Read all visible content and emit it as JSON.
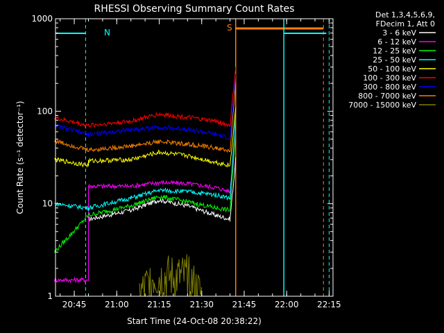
{
  "chart_data": {
    "type": "line",
    "title": "RHESSI Observing Summary Count Rates",
    "xlabel": "Start Time (24-Oct-08 20:38:22)",
    "ylabel": "Count Rate (s⁻¹ detector⁻¹)",
    "y_scale": "log",
    "ylim": [
      1,
      1000
    ],
    "xlim_minutes_after_start": [
      0,
      98
    ],
    "x_ticks": [
      "20:45",
      "21:00",
      "21:15",
      "21:30",
      "21:45",
      "22:00",
      "22:15"
    ],
    "y_ticks": [
      "1",
      "10",
      "100",
      "1000"
    ],
    "legend_header": [
      "Det 1,3,4,5,6,9,",
      "FDecim 1, Att 0"
    ],
    "legend_position": "outside-right",
    "series": [
      {
        "name": "3 - 6 keV",
        "color": "#ffffff",
        "x": [
          "20:38",
          "20:50",
          "21:05",
          "21:15",
          "21:25",
          "21:35",
          "21:40",
          "21:42"
        ],
        "values": [
          null,
          6.8,
          8.5,
          11.0,
          9.5,
          7.5,
          6.8,
          30
        ]
      },
      {
        "name": "6 - 12 keV",
        "color": "#ff00ff",
        "x": [
          "20:38",
          "20:50",
          "20:50",
          "21:05",
          "21:15",
          "21:25",
          "21:35",
          "21:40",
          "21:42"
        ],
        "values": [
          1.5,
          1.5,
          15.5,
          15.5,
          17.0,
          16.5,
          15.0,
          13.5,
          60
        ]
      },
      {
        "name": "12 - 25 keV",
        "color": "#00ff00",
        "x": [
          "20:38",
          "20:50",
          "21:05",
          "21:15",
          "21:25",
          "21:35",
          "21:40",
          "21:42"
        ],
        "values": [
          3.0,
          7.5,
          9.5,
          12.0,
          10.5,
          9.0,
          8.5,
          60
        ]
      },
      {
        "name": "25 - 50 keV",
        "color": "#00ffff",
        "x": [
          "20:38",
          "20:50",
          "21:05",
          "21:15",
          "21:25",
          "21:35",
          "21:40",
          "21:42"
        ],
        "values": [
          10,
          9,
          11.5,
          14,
          13.5,
          12.5,
          11.5,
          90
        ]
      },
      {
        "name": "50 - 100 keV",
        "color": "#ffff00",
        "x": [
          "20:38",
          "20:50",
          "20:50",
          "21:05",
          "21:15",
          "21:25",
          "21:35",
          "21:40",
          "21:42"
        ],
        "values": [
          30,
          26,
          29,
          30,
          36,
          33,
          28,
          26,
          110
        ]
      },
      {
        "name": "100 - 300 keV",
        "color": "#ff0000",
        "x": [
          "20:38",
          "20:50",
          "21:05",
          "21:15",
          "21:25",
          "21:35",
          "21:40",
          "21:42"
        ],
        "values": [
          85,
          70,
          78,
          93,
          86,
          78,
          70,
          300
        ]
      },
      {
        "name": "300 - 800 keV",
        "color": "#0000ff",
        "x": [
          "20:38",
          "20:50",
          "21:05",
          "21:15",
          "21:25",
          "21:35",
          "21:40",
          "21:42"
        ],
        "values": [
          70,
          56,
          63,
          67,
          64,
          56,
          51,
          250
        ]
      },
      {
        "name": "800 - 7000 keV",
        "color": "#ff8000",
        "x": [
          "20:38",
          "20:50",
          "21:05",
          "21:15",
          "21:25",
          "21:35",
          "21:40",
          "21:42"
        ],
        "values": [
          48,
          38,
          42,
          47,
          44,
          40,
          37,
          200
        ]
      },
      {
        "name": "7000 - 15000 keV",
        "color": "#808000",
        "x": [
          "21:08",
          "21:13",
          "21:17",
          "21:21",
          "21:25",
          "21:30"
        ],
        "values": [
          1,
          1.6,
          1.6,
          1.6,
          1.6,
          1
        ]
      }
    ],
    "annotations": [
      "N",
      "S"
    ]
  }
}
